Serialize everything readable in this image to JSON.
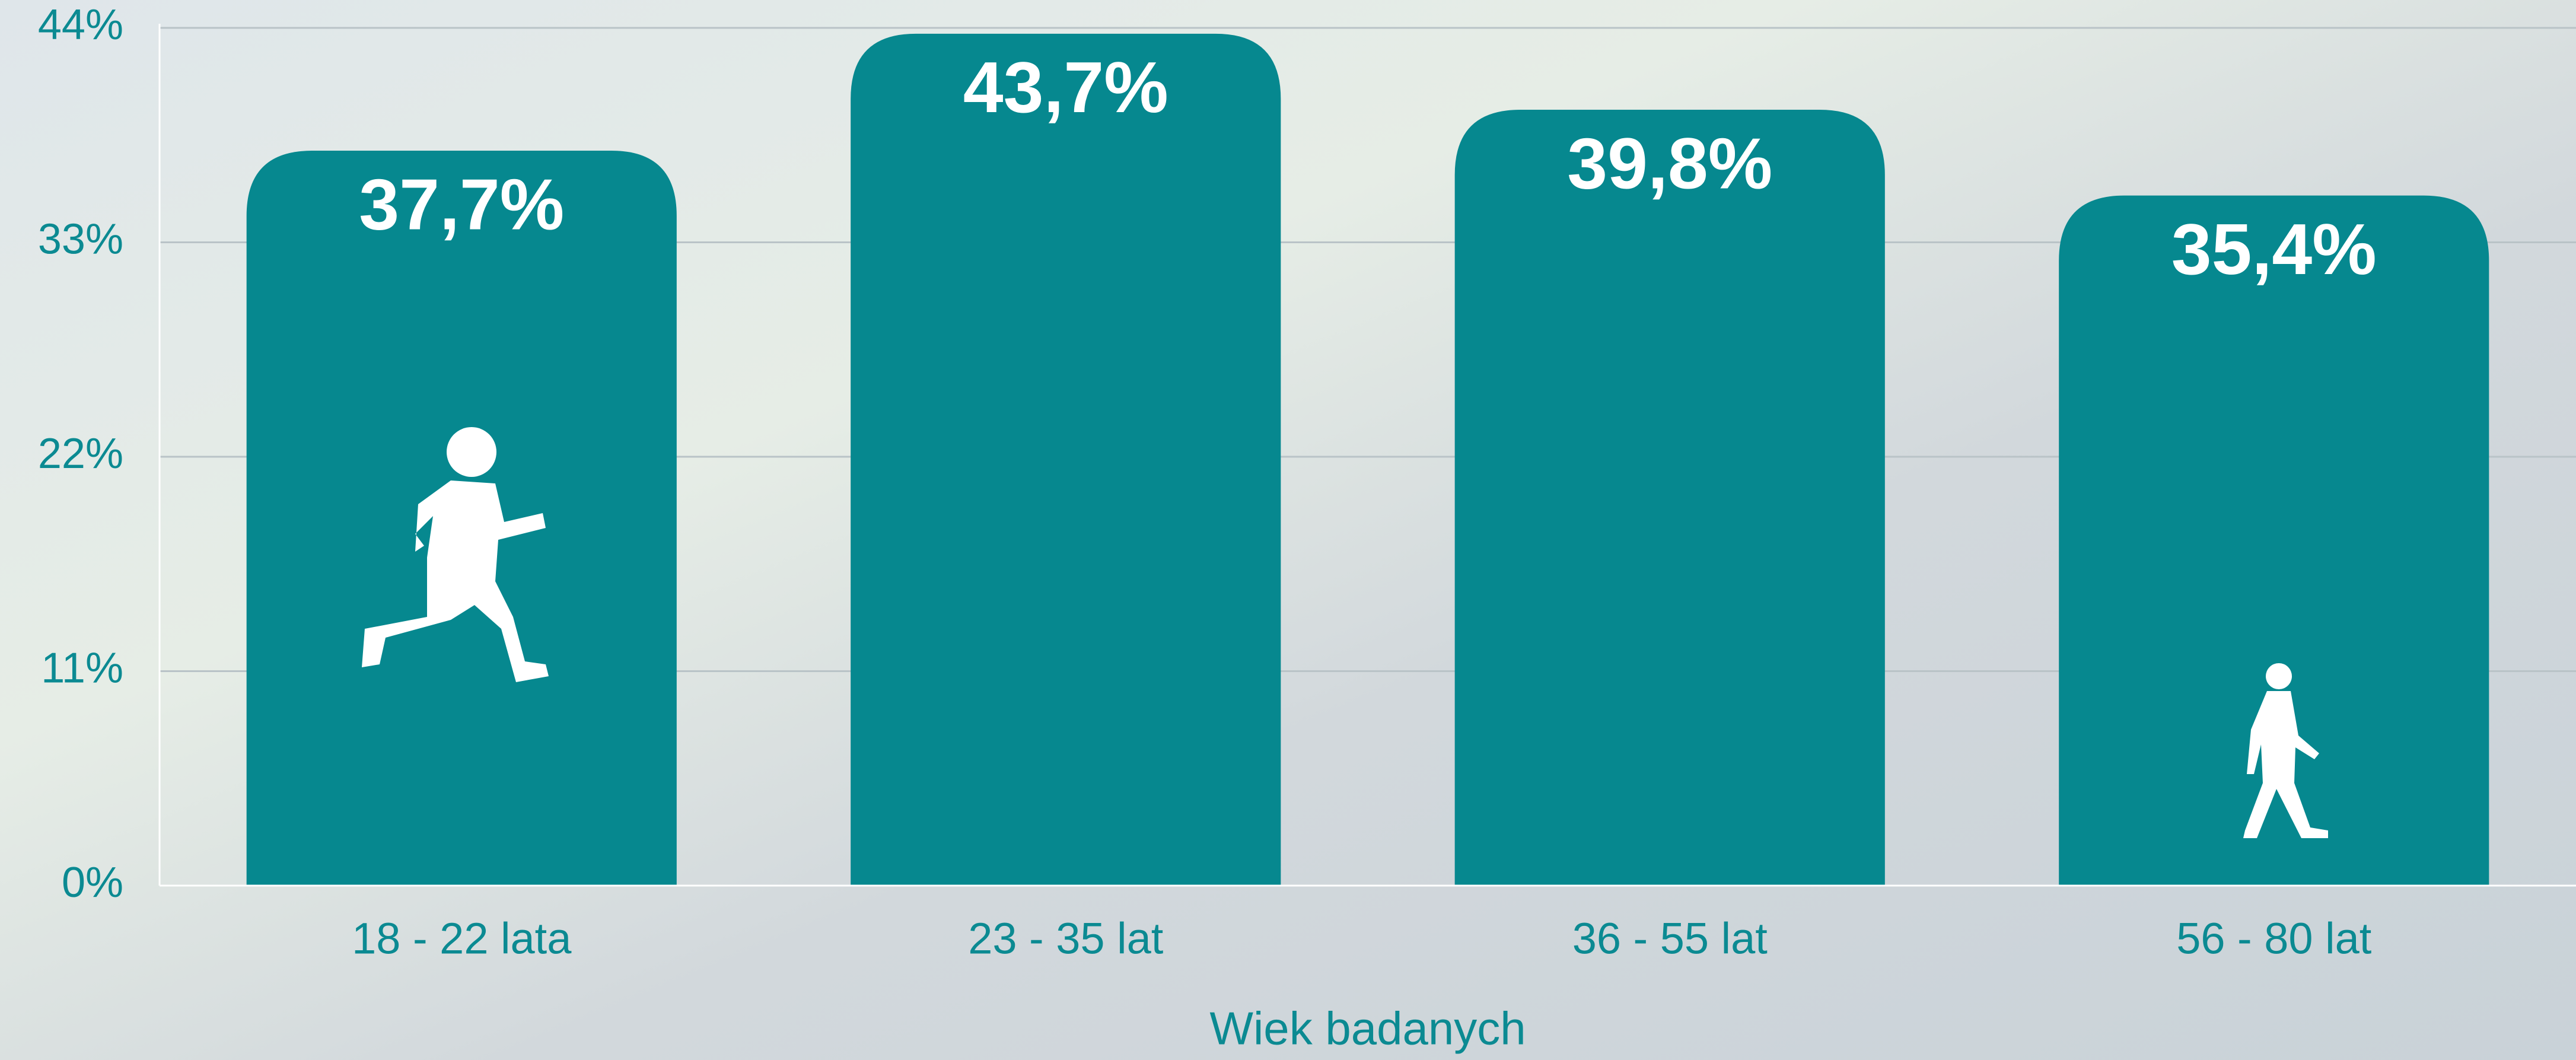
{
  "chart_data": {
    "type": "bar",
    "x_label": "Wiek badanych",
    "categories": [
      "18 - 22 lata",
      "23 - 35 lat",
      "36 - 55 lat",
      "56 - 80 lat"
    ],
    "values": [
      37.7,
      43.7,
      39.8,
      35.4
    ],
    "value_labels": [
      "37,7%",
      "43,7%",
      "39,8%",
      "35,4%"
    ],
    "color": "#06888f",
    "ylim": [
      0,
      44
    ],
    "yticks": [
      {
        "value": 0,
        "label": "0%"
      },
      {
        "value": 11,
        "label": "11%"
      },
      {
        "value": 22,
        "label": "22%"
      },
      {
        "value": 33,
        "label": "33%"
      },
      {
        "value": 44,
        "label": "44%"
      }
    ],
    "grid": true
  }
}
